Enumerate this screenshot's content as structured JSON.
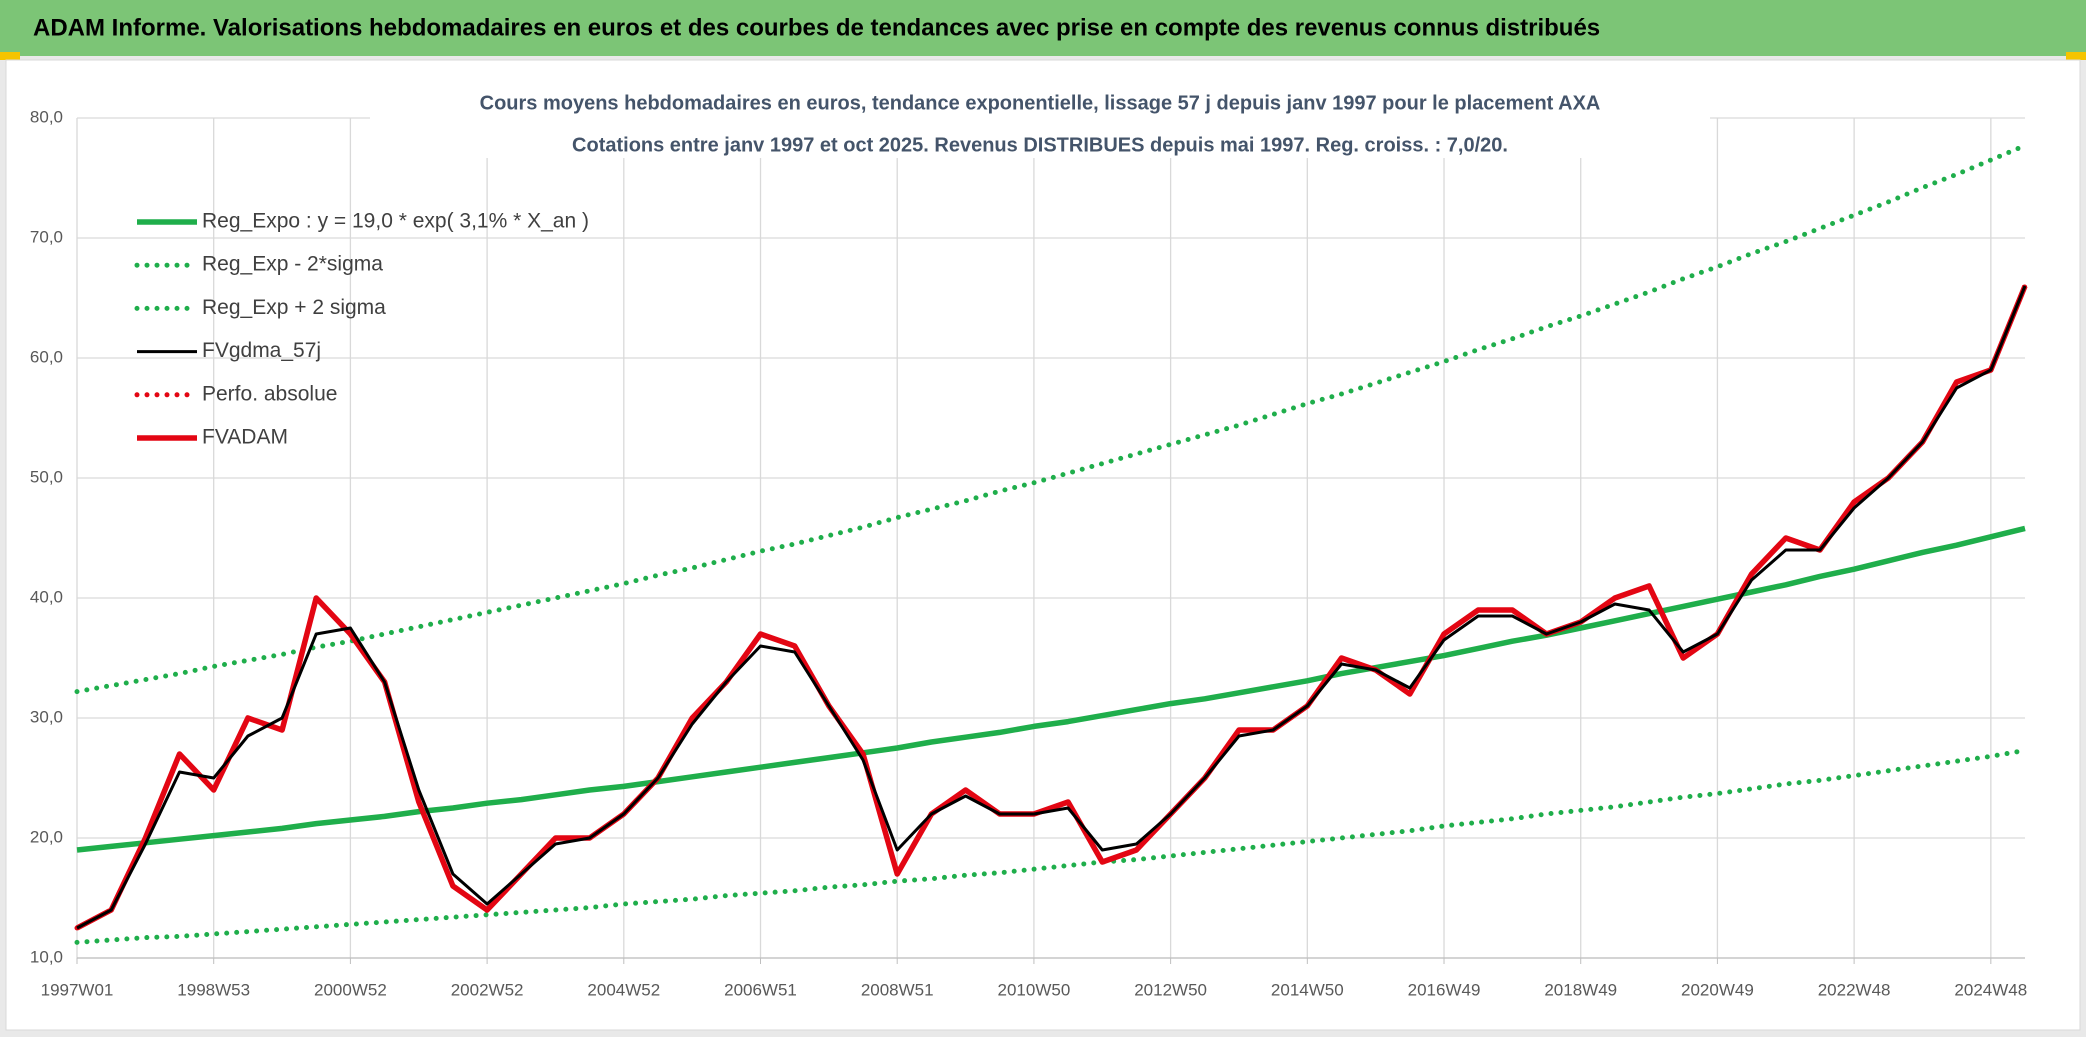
{
  "header": {
    "title": "ADAM Informe. Valorisations hebdomadaires en euros et des courbes de tendances avec prise en compte des revenus connus distribués"
  },
  "chart_data": {
    "type": "line",
    "title": "Cours moyens hebdomadaires en euros, tendance exponentielle, lissage 57 j depuis janv 1997 pour le placement AXA",
    "subtitle": "Cotations entre janv 1997 et oct 2025. Revenus DISTRIBUES depuis mai 1997. Reg. croiss. : 7,0/20.",
    "categories": [
      "1997W01",
      null,
      null,
      null,
      "1998W53",
      null,
      null,
      null,
      "2000W52",
      null,
      null,
      null,
      "2002W52",
      null,
      null,
      null,
      "2004W52",
      null,
      null,
      null,
      "2006W51",
      null,
      null,
      null,
      "2008W51",
      null,
      null,
      null,
      "2010W50",
      null,
      null,
      null,
      "2012W50",
      null,
      null,
      null,
      "2014W50",
      null,
      null,
      null,
      "2016W49",
      null,
      null,
      null,
      "2018W49",
      null,
      null,
      null,
      "2020W49",
      null,
      null,
      null,
      "2022W48",
      null,
      null,
      null,
      "2024W48",
      null
    ],
    "ylim": [
      10,
      80
    ],
    "yticks": [
      {
        "value": 10,
        "label": "10,0"
      },
      {
        "value": 20,
        "label": "20,0"
      },
      {
        "value": 30,
        "label": "30,0"
      },
      {
        "value": 40,
        "label": "40,0"
      },
      {
        "value": 50,
        "label": "50,0"
      },
      {
        "value": 60,
        "label": "60,0"
      },
      {
        "value": 70,
        "label": "70,0"
      },
      {
        "value": 80,
        "label": "80,0"
      }
    ],
    "grid": true,
    "legend": "top-left",
    "series": [
      {
        "name": "Reg_Expo : y = 19,0 * exp( 3,1% *  X_an )",
        "color": "#1fae4b",
        "style": "solid",
        "values": [
          19.0,
          19.3,
          19.6,
          19.9,
          20.2,
          20.5,
          20.8,
          21.2,
          21.5,
          21.8,
          22.2,
          22.5,
          22.9,
          23.2,
          23.6,
          24.0,
          24.3,
          24.7,
          25.1,
          25.5,
          25.9,
          26.3,
          26.7,
          27.1,
          27.5,
          28.0,
          28.4,
          28.8,
          29.3,
          29.7,
          30.2,
          30.7,
          31.2,
          31.6,
          32.1,
          32.6,
          33.1,
          33.7,
          34.2,
          34.7,
          35.2,
          35.8,
          36.4,
          36.9,
          37.5,
          38.1,
          38.7,
          39.3,
          39.9,
          40.5,
          41.1,
          41.8,
          42.4,
          43.1,
          43.8,
          44.4,
          45.1,
          45.8
        ]
      },
      {
        "name": "Reg_Exp - 2*sigma",
        "color": "#1fae4b",
        "style": "dotted",
        "values": [
          11.3,
          11.5,
          11.7,
          11.8,
          12.0,
          12.2,
          12.4,
          12.6,
          12.8,
          13.0,
          13.2,
          13.4,
          13.6,
          13.8,
          14.0,
          14.2,
          14.5,
          14.7,
          14.9,
          15.2,
          15.4,
          15.6,
          15.9,
          16.1,
          16.4,
          16.6,
          16.9,
          17.1,
          17.4,
          17.7,
          18.0,
          18.2,
          18.5,
          18.8,
          19.1,
          19.4,
          19.7,
          20.0,
          20.3,
          20.6,
          21.0,
          21.3,
          21.6,
          22.0,
          22.3,
          22.6,
          23.0,
          23.4,
          23.7,
          24.1,
          24.5,
          24.8,
          25.2,
          25.6,
          26.0,
          26.4,
          26.8,
          27.3
        ]
      },
      {
        "name": "Reg_Exp + 2 sigma",
        "color": "#1fae4b",
        "style": "dotted",
        "values": [
          32.2,
          32.7,
          33.2,
          33.7,
          34.3,
          34.8,
          35.3,
          35.9,
          36.4,
          37.0,
          37.6,
          38.2,
          38.8,
          39.4,
          40.0,
          40.6,
          41.2,
          41.9,
          42.5,
          43.2,
          43.9,
          44.5,
          45.2,
          45.9,
          46.7,
          47.4,
          48.1,
          48.9,
          49.6,
          50.4,
          51.2,
          52.0,
          52.8,
          53.6,
          54.4,
          55.3,
          56.2,
          57.0,
          57.9,
          58.8,
          59.7,
          60.7,
          61.6,
          62.6,
          63.5,
          64.5,
          65.5,
          66.6,
          67.6,
          68.7,
          69.7,
          70.8,
          71.9,
          73.0,
          74.2,
          75.3,
          76.5,
          77.7
        ]
      },
      {
        "name": "FVgdma_57j",
        "color": "#000000",
        "style": "solid",
        "values": [
          12.5,
          14,
          19.5,
          25.5,
          25,
          28.5,
          30,
          37,
          37.5,
          33,
          24,
          17,
          14.5,
          17,
          19.5,
          20,
          22,
          25,
          29.5,
          33,
          36,
          35.5,
          31,
          26.5,
          19,
          22,
          23.5,
          22,
          22,
          22.5,
          19,
          19.5,
          22,
          25,
          28.5,
          29,
          31,
          34.5,
          34,
          32.5,
          36.5,
          38.5,
          38.5,
          37,
          38,
          39.5,
          39,
          35.5,
          37,
          41.5,
          44,
          44,
          47.5,
          50,
          53,
          57.5,
          59,
          66
        ]
      },
      {
        "name": "Perfo. absolue",
        "color": "#e30613",
        "style": "dotted",
        "values": [
          12.5,
          14,
          20,
          27,
          24,
          30,
          29,
          40,
          37,
          33,
          23,
          16,
          14,
          17,
          20,
          20,
          22,
          25,
          30,
          33,
          37,
          36,
          31,
          27,
          17,
          22,
          24,
          22,
          22,
          23,
          18,
          19,
          22,
          25,
          29,
          29,
          31,
          35,
          34,
          32,
          37,
          39,
          39,
          37,
          38,
          40,
          41,
          35,
          37,
          42,
          45,
          44,
          48,
          50,
          53,
          58,
          59,
          66
        ]
      },
      {
        "name": "FVADAM",
        "color": "#e30613",
        "style": "solid",
        "values": [
          12.5,
          14,
          20,
          27,
          24,
          30,
          29,
          40,
          37,
          33,
          23,
          16,
          14,
          17,
          20,
          20,
          22,
          25,
          30,
          33,
          37,
          36,
          31,
          27,
          17,
          22,
          24,
          22,
          22,
          23,
          18,
          19,
          22,
          25,
          29,
          29,
          31,
          35,
          34,
          32,
          37,
          39,
          39,
          37,
          38,
          40,
          41,
          35,
          37,
          42,
          45,
          44,
          48,
          50,
          53,
          58,
          59,
          66
        ]
      }
    ]
  }
}
